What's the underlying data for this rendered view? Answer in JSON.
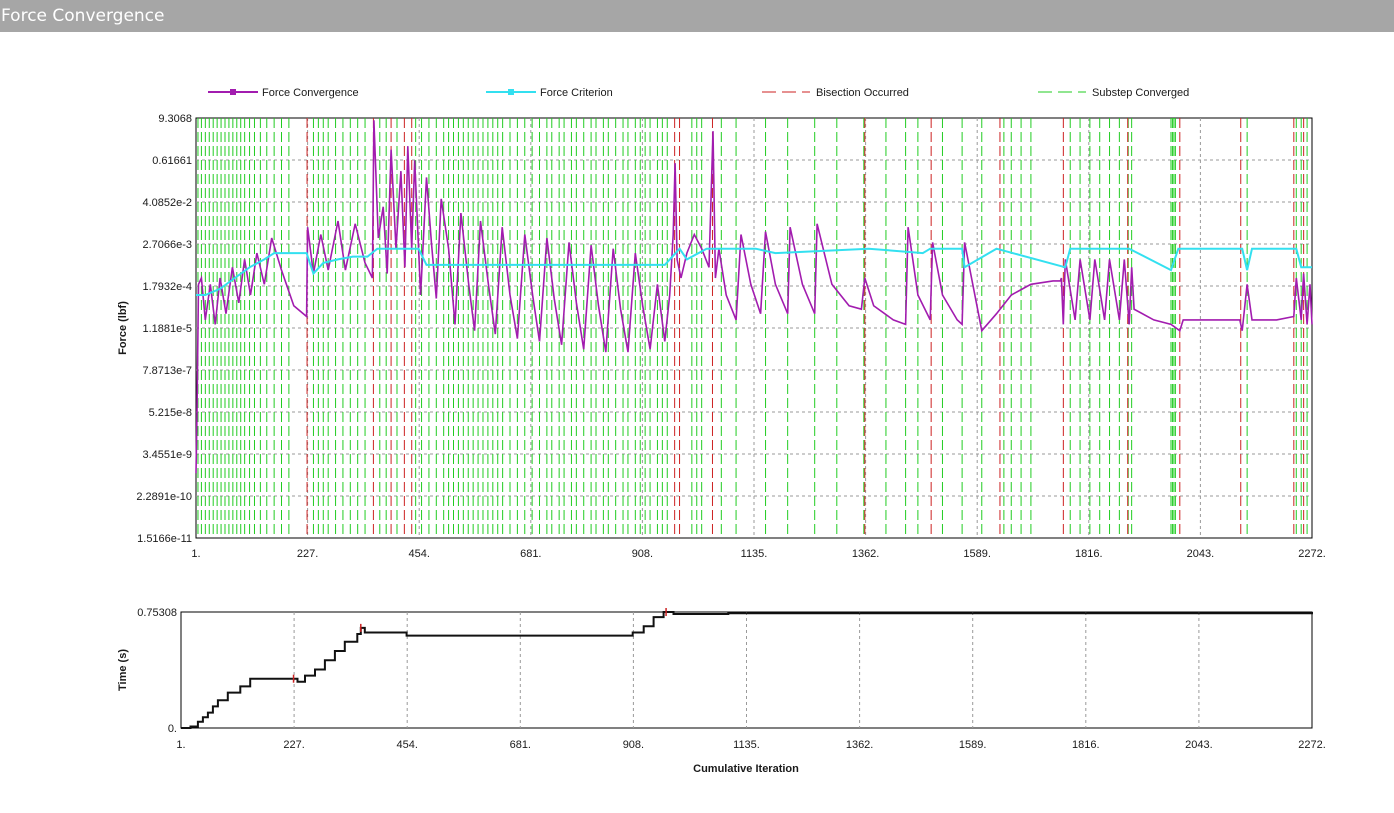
{
  "window": {
    "title": "Force Convergence"
  },
  "colors": {
    "force": "#a21caf",
    "criterion": "#33e0f0",
    "bisection": "#cc2222",
    "substep": "#22cc22",
    "time": "#111111"
  },
  "chart_data": [
    {
      "type": "line",
      "ylabel": "Force (lbf)",
      "xlabel": "",
      "log_scale_y": true,
      "yticks": [
        "9.3068",
        "0.61661",
        "4.0852e-2",
        "2.7066e-3",
        "1.7932e-4",
        "1.1881e-5",
        "7.8713e-7",
        "5.215e-8",
        "3.4551e-9",
        "2.2891e-10",
        "1.5166e-11"
      ],
      "xticks": [
        "1.",
        "227.",
        "454.",
        "681.",
        "908.",
        "1135.",
        "1362.",
        "1589.",
        "1816.",
        "2043.",
        "2272."
      ],
      "xlim": [
        1,
        2272
      ],
      "ylim": [
        1.5166e-11,
        9.3068
      ],
      "grid": true,
      "legend": [
        {
          "key": "force",
          "label": "Force Convergence"
        },
        {
          "key": "criterion",
          "label": "Force Criterion"
        },
        {
          "key": "bisection",
          "label": "Bisection Occurred"
        },
        {
          "key": "substep",
          "label": "Substep Converged"
        }
      ],
      "legend_position": "top",
      "bisections": [
        227,
        362,
        398,
        425,
        440,
        975,
        985,
        1052,
        1362,
        1497,
        1637,
        1766,
        1897,
        2003,
        2127,
        2235,
        2255
      ],
      "substeps": [
        5,
        12,
        20,
        28,
        36,
        44,
        52,
        60,
        68,
        76,
        84,
        92,
        100,
        110,
        120,
        132,
        145,
        160,
        175,
        190,
        240,
        250,
        260,
        270,
        285,
        300,
        315,
        330,
        345,
        375,
        388,
        410,
        448,
        460,
        475,
        490,
        505,
        515,
        525,
        535,
        545,
        555,
        565,
        575,
        585,
        595,
        605,
        615,
        625,
        640,
        655,
        670,
        685,
        700,
        715,
        725,
        740,
        750,
        765,
        775,
        790,
        805,
        815,
        830,
        840,
        855,
        870,
        880,
        895,
        905,
        915,
        925,
        940,
        950,
        960,
        1010,
        1020,
        1030,
        1070,
        1100,
        1160,
        1205,
        1260,
        1305,
        1360,
        1405,
        1445,
        1470,
        1520,
        1560,
        1600,
        1645,
        1660,
        1680,
        1700,
        1780,
        1800,
        1820,
        1840,
        1860,
        1880,
        1898,
        1905,
        1985,
        1988,
        1991,
        1994,
        2140,
        2240,
        2250,
        2262
      ],
      "series": [
        {
          "name": "Force Convergence",
          "points": [
            [
              1,
              1e-09
            ],
            [
              3,
              5e-08
            ],
            [
              6,
              0.0002
            ],
            [
              12,
              0.0003
            ],
            [
              20,
              2e-05
            ],
            [
              30,
              0.0002
            ],
            [
              40,
              1.5e-05
            ],
            [
              50,
              0.0003
            ],
            [
              62,
              3e-05
            ],
            [
              75,
              0.0006
            ],
            [
              88,
              6e-05
            ],
            [
              100,
              0.001
            ],
            [
              112,
              0.0001
            ],
            [
              125,
              0.0015
            ],
            [
              140,
              0.0002
            ],
            [
              155,
              0.004
            ],
            [
              175,
              0.0005
            ],
            [
              200,
              5e-05
            ],
            [
              226,
              2.5e-05
            ],
            [
              228,
              0.008
            ],
            [
              240,
              0.0004
            ],
            [
              255,
              0.005
            ],
            [
              270,
              0.0005
            ],
            [
              290,
              0.012
            ],
            [
              305,
              0.0005
            ],
            [
              325,
              0.01
            ],
            [
              345,
              0.0008
            ],
            [
              360,
              0.0003
            ],
            [
              363,
              8
            ],
            [
              372,
              0.004
            ],
            [
              382,
              0.03
            ],
            [
              390,
              0.0004
            ],
            [
              398,
              1.2
            ],
            [
              408,
              0.002
            ],
            [
              418,
              0.3
            ],
            [
              426,
              0.0006
            ],
            [
              432,
              1.5
            ],
            [
              440,
              0.002
            ],
            [
              446,
              0.6
            ],
            [
              458,
              0.0001
            ],
            [
              470,
              0.2
            ],
            [
              480,
              0.003
            ],
            [
              490,
              8e-05
            ],
            [
              500,
              0.05
            ],
            [
              515,
              0.002
            ],
            [
              528,
              1.5e-05
            ],
            [
              540,
              0.02
            ],
            [
              556,
              0.0002
            ],
            [
              568,
              1e-05
            ],
            [
              580,
              0.012
            ],
            [
              596,
              0.0002
            ],
            [
              610,
              8e-06
            ],
            [
              624,
              0.008
            ],
            [
              640,
              0.0001
            ],
            [
              655,
              6e-06
            ],
            [
              670,
              0.005
            ],
            [
              686,
              0.0001
            ],
            [
              700,
              5e-06
            ],
            [
              715,
              0.004
            ],
            [
              730,
              8e-05
            ],
            [
              745,
              4e-06
            ],
            [
              760,
              0.003
            ],
            [
              775,
              6e-05
            ],
            [
              790,
              3e-06
            ],
            [
              805,
              0.0025
            ],
            [
              820,
              5e-05
            ],
            [
              835,
              2.5e-06
            ],
            [
              850,
              0.002
            ],
            [
              865,
              4e-05
            ],
            [
              880,
              2.5e-06
            ],
            [
              895,
              0.0015
            ],
            [
              910,
              5e-05
            ],
            [
              925,
              3e-06
            ],
            [
              940,
              0.0002
            ],
            [
              955,
              5e-06
            ],
            [
              965,
              0.0001
            ],
            [
              972,
              0.005
            ],
            [
              976,
              0.5
            ],
            [
              980,
              0.001
            ],
            [
              988,
              0.0003
            ],
            [
              1000,
              0.0015
            ],
            [
              1015,
              0.005
            ],
            [
              1030,
              0.002
            ],
            [
              1045,
              0.0006
            ],
            [
              1053,
              4
            ],
            [
              1058,
              0.0003
            ],
            [
              1065,
              0.002
            ],
            [
              1080,
              0.0001
            ],
            [
              1100,
              2e-05
            ],
            [
              1110,
              0.005
            ],
            [
              1130,
              0.0002
            ],
            [
              1150,
              3e-05
            ],
            [
              1160,
              0.006
            ],
            [
              1180,
              0.0002
            ],
            [
              1205,
              3e-05
            ],
            [
              1210,
              0.008
            ],
            [
              1235,
              0.0002
            ],
            [
              1260,
              3e-05
            ],
            [
              1265,
              0.01
            ],
            [
              1295,
              0.0002
            ],
            [
              1330,
              5e-05
            ],
            [
              1355,
              4e-05
            ],
            [
              1362,
              0.0003
            ],
            [
              1380,
              5e-05
            ],
            [
              1420,
              2e-05
            ],
            [
              1445,
              1.5e-05
            ],
            [
              1450,
              0.008
            ],
            [
              1470,
              0.0001
            ],
            [
              1495,
              2e-05
            ],
            [
              1500,
              0.003
            ],
            [
              1520,
              0.0001
            ],
            [
              1550,
              2e-05
            ],
            [
              1560,
              1.5e-05
            ],
            [
              1565,
              0.003
            ],
            [
              1600,
              1e-05
            ],
            [
              1630,
              3e-05
            ],
            [
              1660,
              0.0001
            ],
            [
              1700,
              0.0002
            ],
            [
              1745,
              0.00025
            ],
            [
              1760,
              0.00025
            ],
            [
              1762,
              0.0003
            ],
            [
              1766,
              1.5e-05
            ],
            [
              1770,
              0.001
            ],
            [
              1790,
              2e-05
            ],
            [
              1800,
              0.001
            ],
            [
              1820,
              2e-05
            ],
            [
              1830,
              0.001
            ],
            [
              1850,
              2e-05
            ],
            [
              1860,
              0.001
            ],
            [
              1880,
              2e-05
            ],
            [
              1890,
              0.001
            ],
            [
              1900,
              1.5e-05
            ],
            [
              1905,
              0.0006
            ],
            [
              1910,
              4e-05
            ],
            [
              1950,
              2e-05
            ],
            [
              1985,
              1.5e-05
            ],
            [
              2003,
              1e-05
            ],
            [
              2010,
              2e-05
            ],
            [
              2060,
              2e-05
            ],
            [
              2125,
              2e-05
            ],
            [
              2130,
              1e-05
            ],
            [
              2140,
              0.0002
            ],
            [
              2150,
              2e-05
            ],
            [
              2200,
              2e-05
            ],
            [
              2235,
              2.5e-05
            ],
            [
              2240,
              0.0003
            ],
            [
              2250,
              2e-05
            ],
            [
              2255,
              0.0004
            ],
            [
              2262,
              1.5e-05
            ],
            [
              2268,
              0.0002
            ],
            [
              2272,
              1.5e-05
            ]
          ]
        },
        {
          "name": "Force Criterion",
          "points": [
            [
              1,
              0.0001
            ],
            [
              20,
              0.0001
            ],
            [
              50,
              0.00015
            ],
            [
              80,
              0.0003
            ],
            [
              110,
              0.0006
            ],
            [
              140,
              0.001
            ],
            [
              160,
              0.0015
            ],
            [
              226,
              0.0015
            ],
            [
              240,
              0.0004
            ],
            [
              260,
              0.0008
            ],
            [
              290,
              0.001
            ],
            [
              320,
              0.0012
            ],
            [
              350,
              0.0012
            ],
            [
              370,
              0.002
            ],
            [
              454,
              0.002
            ],
            [
              470,
              0.0007
            ],
            [
              955,
              0.0007
            ],
            [
              985,
              0.002
            ],
            [
              1000,
              0.001
            ],
            [
              1040,
              0.002
            ],
            [
              1140,
              0.002
            ],
            [
              1180,
              0.0015
            ],
            [
              1370,
              0.002
            ],
            [
              1480,
              0.0015
            ],
            [
              1495,
              0.002
            ],
            [
              1560,
              0.002
            ],
            [
              1565,
              0.0006
            ],
            [
              1630,
              0.002
            ],
            [
              1770,
              0.0006
            ],
            [
              1780,
              0.002
            ],
            [
              1900,
              0.002
            ],
            [
              1985,
              0.0005
            ],
            [
              2000,
              0.002
            ],
            [
              2130,
              0.002
            ],
            [
              2140,
              0.0005
            ],
            [
              2150,
              0.002
            ],
            [
              2240,
              0.002
            ],
            [
              2250,
              0.0006
            ],
            [
              2272,
              0.0006
            ]
          ]
        }
      ]
    },
    {
      "type": "line",
      "ylabel": "Time (s)",
      "xlabel": "Cumulative Iteration",
      "yticks": [
        "0.75308",
        "0."
      ],
      "xticks": [
        "1.",
        "227.",
        "454.",
        "681.",
        "908.",
        "1135.",
        "1362.",
        "1589.",
        "1816.",
        "2043.",
        "2272."
      ],
      "xlim": [
        1,
        2272
      ],
      "ylim": [
        0,
        0.75308
      ],
      "grid": true,
      "series": [
        {
          "name": "Time",
          "points": [
            [
              1,
              0
            ],
            [
              20,
              0.01
            ],
            [
              35,
              0.04
            ],
            [
              45,
              0.07
            ],
            [
              55,
              0.1
            ],
            [
              65,
              0.14
            ],
            [
              75,
              0.18
            ],
            [
              95,
              0.23
            ],
            [
              120,
              0.27
            ],
            [
              140,
              0.32
            ],
            [
              227,
              0.32
            ],
            [
              235,
              0.3
            ],
            [
              250,
              0.34
            ],
            [
              270,
              0.38
            ],
            [
              290,
              0.44
            ],
            [
              310,
              0.5
            ],
            [
              330,
              0.56
            ],
            [
              355,
              0.61
            ],
            [
              362,
              0.65
            ],
            [
              370,
              0.62
            ],
            [
              454,
              0.6
            ],
            [
              681,
              0.6
            ],
            [
              908,
              0.62
            ],
            [
              930,
              0.66
            ],
            [
              950,
              0.72
            ],
            [
              970,
              0.75308
            ],
            [
              990,
              0.74
            ],
            [
              1100,
              0.745
            ],
            [
              2272,
              0.75308
            ]
          ]
        }
      ]
    }
  ]
}
